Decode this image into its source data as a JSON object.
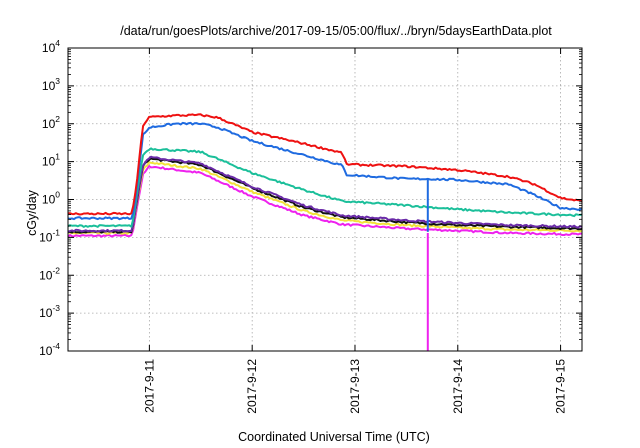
{
  "chart_data": {
    "type": "line",
    "title": "/data/run/goesPlots/archive/2017-09-15/05:00/flux/../bryn/5daysEarthData.plot",
    "xlabel": "Coordinated Universal Time (UTC)",
    "ylabel": "cGy/day",
    "x_axis": {
      "min": "2017-09-10 05:00",
      "max": "2017-09-15 05:00",
      "ticks": [
        "2017-9-11",
        "2017-9-12",
        "2017-9-13",
        "2017-9-14",
        "2017-9-15"
      ]
    },
    "y_axis": {
      "scale": "log",
      "min": 0.0001,
      "max": 10000,
      "ticks": [
        {
          "base": "10",
          "exp": "-4",
          "value": 0.0001
        },
        {
          "base": "10",
          "exp": "-3",
          "value": 0.001
        },
        {
          "base": "10",
          "exp": "-2",
          "value": 0.01
        },
        {
          "base": "10",
          "exp": "-1",
          "value": 0.1
        },
        {
          "base": "10",
          "exp": "0",
          "value": 1
        },
        {
          "base": "10",
          "exp": "1",
          "value": 10
        },
        {
          "base": "10",
          "exp": "2",
          "value": 100
        },
        {
          "base": "10",
          "exp": "3",
          "value": 1000
        },
        {
          "base": "10",
          "exp": "4",
          "value": 10000
        }
      ]
    },
    "grid": true,
    "legend": "none",
    "series": [
      {
        "color": "#ee1111",
        "points": [
          [
            "2017-09-10 05:00",
            0.42
          ],
          [
            "2017-09-10 12:00",
            0.42
          ],
          [
            "2017-09-10 20:00",
            0.42
          ],
          [
            "2017-09-10 21:00",
            2.5
          ],
          [
            "2017-09-10 22:30",
            90
          ],
          [
            "2017-09-11 00:00",
            150
          ],
          [
            "2017-09-11 06:00",
            165
          ],
          [
            "2017-09-11 12:00",
            170
          ],
          [
            "2017-09-11 16:00",
            145
          ],
          [
            "2017-09-12 00:00",
            60
          ],
          [
            "2017-09-12 12:00",
            30
          ],
          [
            "2017-09-12 21:00",
            17
          ],
          [
            "2017-09-12 22:00",
            8.5
          ],
          [
            "2017-09-13 12:00",
            7.5
          ],
          [
            "2017-09-14 00:00",
            6
          ],
          [
            "2017-09-14 12:00",
            4
          ],
          [
            "2017-09-14 18:00",
            2.5
          ],
          [
            "2017-09-15 00:00",
            1.1
          ],
          [
            "2017-09-15 05:00",
            0.9
          ]
        ]
      },
      {
        "color": "#1f6be0",
        "points": [
          [
            "2017-09-10 05:00",
            0.32
          ],
          [
            "2017-09-10 12:00",
            0.32
          ],
          [
            "2017-09-10 20:00",
            0.32
          ],
          [
            "2017-09-10 21:00",
            1.8
          ],
          [
            "2017-09-10 22:30",
            50
          ],
          [
            "2017-09-11 00:00",
            80
          ],
          [
            "2017-09-11 06:00",
            100
          ],
          [
            "2017-09-11 12:00",
            100
          ],
          [
            "2017-09-11 16:00",
            80
          ],
          [
            "2017-09-12 00:00",
            35
          ],
          [
            "2017-09-12 12:00",
            15
          ],
          [
            "2017-09-12 21:00",
            8
          ],
          [
            "2017-09-12 22:00",
            4.5
          ],
          [
            "2017-09-13 12:00",
            3.5
          ],
          [
            "2017-09-13 17:00",
            3.5
          ],
          [
            "2017-09-14 00:00",
            3.3
          ],
          [
            "2017-09-14 12:00",
            2.5
          ],
          [
            "2017-09-14 18:00",
            1.3
          ],
          [
            "2017-09-15 00:00",
            0.6
          ],
          [
            "2017-09-15 05:00",
            0.55
          ]
        ]
      },
      {
        "color": "#1bbf9a",
        "points": [
          [
            "2017-09-10 05:00",
            0.2
          ],
          [
            "2017-09-10 12:00",
            0.2
          ],
          [
            "2017-09-10 20:00",
            0.2
          ],
          [
            "2017-09-10 21:00",
            1.2
          ],
          [
            "2017-09-10 22:30",
            15
          ],
          [
            "2017-09-11 00:00",
            22
          ],
          [
            "2017-09-11 12:00",
            18
          ],
          [
            "2017-09-12 00:00",
            5
          ],
          [
            "2017-09-12 12:00",
            1.8
          ],
          [
            "2017-09-12 21:00",
            0.9
          ],
          [
            "2017-09-13 12:00",
            0.7
          ],
          [
            "2017-09-14 00:00",
            0.55
          ],
          [
            "2017-09-14 12:00",
            0.45
          ],
          [
            "2017-09-15 05:00",
            0.38
          ]
        ]
      },
      {
        "color": "#6a2aa8",
        "points": [
          [
            "2017-09-10 05:00",
            0.15
          ],
          [
            "2017-09-10 12:00",
            0.15
          ],
          [
            "2017-09-10 20:00",
            0.15
          ],
          [
            "2017-09-10 21:00",
            0.9
          ],
          [
            "2017-09-10 22:30",
            8
          ],
          [
            "2017-09-11 00:00",
            13
          ],
          [
            "2017-09-11 12:00",
            9
          ],
          [
            "2017-09-12 00:00",
            2.2
          ],
          [
            "2017-09-12 12:00",
            0.7
          ],
          [
            "2017-09-12 21:00",
            0.38
          ],
          [
            "2017-09-13 12:00",
            0.28
          ],
          [
            "2017-09-14 00:00",
            0.24
          ],
          [
            "2017-09-14 12:00",
            0.21
          ],
          [
            "2017-09-15 05:00",
            0.19
          ]
        ]
      },
      {
        "color": "#111111",
        "points": [
          [
            "2017-09-10 05:00",
            0.14
          ],
          [
            "2017-09-10 12:00",
            0.14
          ],
          [
            "2017-09-10 20:00",
            0.14
          ],
          [
            "2017-09-10 21:00",
            0.8
          ],
          [
            "2017-09-10 22:30",
            7.5
          ],
          [
            "2017-09-11 00:00",
            12
          ],
          [
            "2017-09-11 12:00",
            8.2
          ],
          [
            "2017-09-12 00:00",
            2
          ],
          [
            "2017-09-12 12:00",
            0.62
          ],
          [
            "2017-09-12 21:00",
            0.34
          ],
          [
            "2017-09-13 12:00",
            0.25
          ],
          [
            "2017-09-14 00:00",
            0.21
          ],
          [
            "2017-09-14 12:00",
            0.19
          ],
          [
            "2017-09-15 05:00",
            0.17
          ]
        ]
      },
      {
        "color": "#f2e23a",
        "points": [
          [
            "2017-09-10 05:00",
            0.13
          ],
          [
            "2017-09-10 12:00",
            0.13
          ],
          [
            "2017-09-10 20:00",
            0.13
          ],
          [
            "2017-09-10 21:00",
            0.7
          ],
          [
            "2017-09-10 22:30",
            6
          ],
          [
            "2017-09-11 00:00",
            9.5
          ],
          [
            "2017-09-11 12:00",
            6.5
          ],
          [
            "2017-09-12 00:00",
            1.6
          ],
          [
            "2017-09-12 12:00",
            0.5
          ],
          [
            "2017-09-12 21:00",
            0.28
          ],
          [
            "2017-09-13 12:00",
            0.21
          ],
          [
            "2017-09-14 00:00",
            0.18
          ],
          [
            "2017-09-14 12:00",
            0.16
          ],
          [
            "2017-09-15 05:00",
            0.15
          ]
        ]
      },
      {
        "color": "#ee22ee",
        "points": [
          [
            "2017-09-10 05:00",
            0.11
          ],
          [
            "2017-09-10 12:00",
            0.11
          ],
          [
            "2017-09-10 20:00",
            0.11
          ],
          [
            "2017-09-10 21:00",
            0.55
          ],
          [
            "2017-09-10 22:30",
            4.5
          ],
          [
            "2017-09-11 00:00",
            7.5
          ],
          [
            "2017-09-11 12:00",
            5
          ],
          [
            "2017-09-12 00:00",
            1.2
          ],
          [
            "2017-09-12 12:00",
            0.38
          ],
          [
            "2017-09-12 21:00",
            0.22
          ],
          [
            "2017-09-13 12:00",
            0.17
          ],
          [
            "2017-09-14 00:00",
            0.15
          ],
          [
            "2017-09-14 12:00",
            0.13
          ],
          [
            "2017-09-15 05:00",
            0.12
          ]
        ]
      }
    ],
    "annotations": [
      {
        "type": "dropout",
        "color": "#ee22ee",
        "x": "2017-09-13 17:00",
        "from": 0.13,
        "to": 0.0001
      },
      {
        "type": "dropout",
        "color": "#1f6be0",
        "x": "2017-09-13 17:00",
        "from": 3.5,
        "to": 0.14
      }
    ]
  }
}
